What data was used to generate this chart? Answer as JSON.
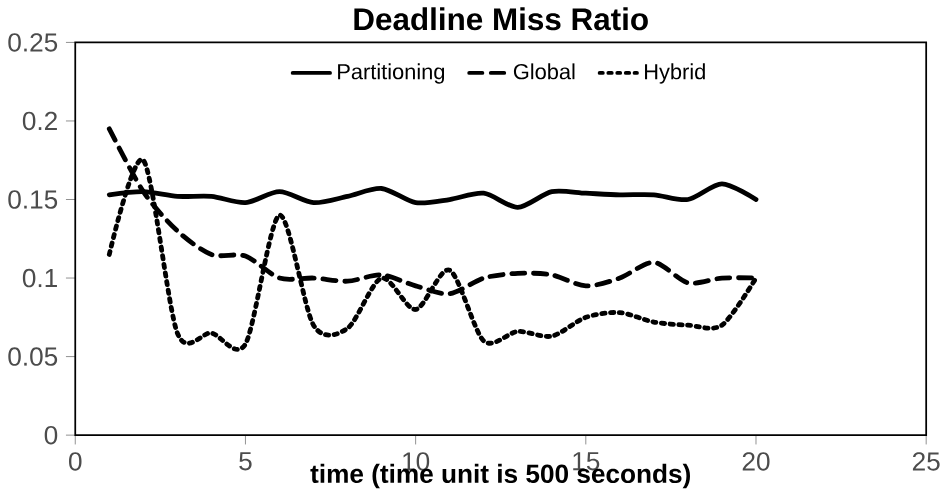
{
  "chart_data": {
    "type": "line",
    "title": "Deadline Miss Ratio",
    "xlabel": "time (time unit is 500 seconds)",
    "x": [
      1,
      2,
      3,
      4,
      5,
      6,
      7,
      8,
      9,
      10,
      11,
      12,
      13,
      14,
      15,
      16,
      17,
      18,
      19,
      20
    ],
    "xlim": [
      0,
      25
    ],
    "xticks": [
      0,
      5,
      10,
      15,
      20,
      25
    ],
    "ylim": [
      0,
      0.25
    ],
    "yticks": [
      0,
      0.05,
      0.1,
      0.15,
      0.2,
      0.25
    ],
    "legend": "top",
    "grid": false,
    "marker": "none",
    "series": [
      {
        "name": "Partitioning",
        "color": "#000000",
        "line_style": "solid",
        "values": [
          0.153,
          0.155,
          0.152,
          0.152,
          0.148,
          0.155,
          0.148,
          0.152,
          0.157,
          0.148,
          0.15,
          0.154,
          0.145,
          0.155,
          0.154,
          0.153,
          0.153,
          0.15,
          0.16,
          0.15
        ]
      },
      {
        "name": "Global",
        "color": "#000000",
        "line_style": "dashed",
        "values": [
          0.195,
          0.155,
          0.13,
          0.115,
          0.114,
          0.1,
          0.1,
          0.098,
          0.102,
          0.095,
          0.09,
          0.1,
          0.103,
          0.102,
          0.095,
          0.1,
          0.11,
          0.097,
          0.1,
          0.1
        ]
      },
      {
        "name": "Hybrid",
        "color": "#000000",
        "line_style": "dotted",
        "values": [
          0.115,
          0.175,
          0.065,
          0.065,
          0.058,
          0.14,
          0.07,
          0.068,
          0.1,
          0.08,
          0.105,
          0.06,
          0.066,
          0.063,
          0.075,
          0.078,
          0.072,
          0.07,
          0.07,
          0.1
        ]
      }
    ]
  }
}
